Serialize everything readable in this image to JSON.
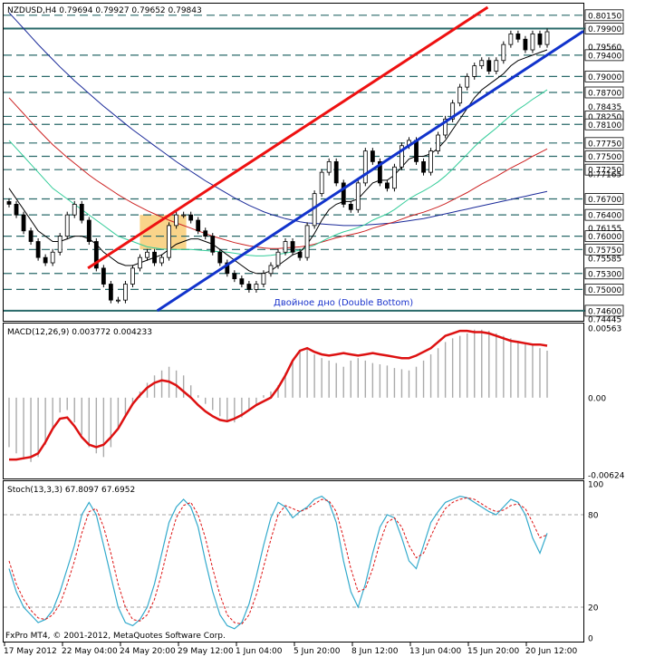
{
  "chart_data": [
    {
      "type": "candlestick",
      "title": "NZDUSD,H4  0.79694 0.79927 0.79652 0.79843",
      "ylim": [
        0.74445,
        0.803
      ],
      "price_labels": [
        {
          "text": "0.80150",
          "value": 0.8015,
          "boxed": true
        },
        {
          "text": "0.79900",
          "value": 0.799,
          "boxed": true
        },
        {
          "text": "0.79560",
          "value": 0.7956,
          "boxed": false
        },
        {
          "text": "0.79400",
          "value": 0.794,
          "boxed": true
        },
        {
          "text": "0.79000",
          "value": 0.79,
          "boxed": true
        },
        {
          "text": "0.78700",
          "value": 0.787,
          "boxed": true
        },
        {
          "text": "0.78435",
          "value": 0.78435,
          "boxed": false
        },
        {
          "text": "0.78250",
          "value": 0.7825,
          "boxed": true
        },
        {
          "text": "0.78100",
          "value": 0.781,
          "boxed": true
        },
        {
          "text": "0.77750",
          "value": 0.7775,
          "boxed": true
        },
        {
          "text": "0.77500",
          "value": 0.775,
          "boxed": true
        },
        {
          "text": "0.77250",
          "value": 0.7725,
          "boxed": true
        },
        {
          "text": "0.77165",
          "value": 0.77165,
          "boxed": false
        },
        {
          "text": "0.76700",
          "value": 0.767,
          "boxed": true
        },
        {
          "text": "0.76400",
          "value": 0.764,
          "boxed": true
        },
        {
          "text": "0.76155",
          "value": 0.76155,
          "boxed": false
        },
        {
          "text": "0.76000",
          "value": 0.76,
          "boxed": true
        },
        {
          "text": "0.75750",
          "value": 0.7575,
          "boxed": true
        },
        {
          "text": "0.75585",
          "value": 0.75585,
          "boxed": false
        },
        {
          "text": "0.75300",
          "value": 0.753,
          "boxed": true
        },
        {
          "text": "0.75000",
          "value": 0.75,
          "boxed": true
        },
        {
          "text": "0.74600",
          "value": 0.746,
          "boxed": true
        },
        {
          "text": "0.74445",
          "value": 0.74445,
          "boxed": false
        }
      ],
      "dashed_levels": [
        0.8015,
        0.794,
        0.79,
        0.787,
        0.7825,
        0.781,
        0.7775,
        0.775,
        0.7725,
        0.767,
        0.764,
        0.76,
        0.7575,
        0.753,
        0.75
      ],
      "solid_levels": [
        0.799,
        0.746
      ],
      "annotation": "Двойное дно (Double Bottom)",
      "close_series": [
        0.766,
        0.764,
        0.761,
        0.759,
        0.756,
        0.755,
        0.757,
        0.76,
        0.764,
        0.766,
        0.763,
        0.759,
        0.754,
        0.751,
        0.748,
        0.748,
        0.751,
        0.754,
        0.756,
        0.757,
        0.755,
        0.756,
        0.762,
        0.764,
        0.764,
        0.763,
        0.761,
        0.76,
        0.757,
        0.755,
        0.753,
        0.752,
        0.751,
        0.75,
        0.751,
        0.753,
        0.7545,
        0.757,
        0.759,
        0.757,
        0.756,
        0.762,
        0.768,
        0.772,
        0.774,
        0.77,
        0.766,
        0.765,
        0.77,
        0.776,
        0.774,
        0.77,
        0.769,
        0.773,
        0.777,
        0.778,
        0.774,
        0.772,
        0.776,
        0.779,
        0.782,
        0.785,
        0.788,
        0.79,
        0.792,
        0.793,
        0.791,
        0.793,
        0.796,
        0.798,
        0.797,
        0.795,
        0.798,
        0.796,
        0.7984
      ],
      "ma_fast": [
        0.769,
        0.767,
        0.765,
        0.763,
        0.761,
        0.76,
        0.759,
        0.759,
        0.7595,
        0.76,
        0.76,
        0.7595,
        0.7585,
        0.757,
        0.756,
        0.755,
        0.7545,
        0.7545,
        0.755,
        0.7555,
        0.756,
        0.7565,
        0.7575,
        0.7585,
        0.759,
        0.7595,
        0.7595,
        0.759,
        0.7585,
        0.7575,
        0.7565,
        0.7555,
        0.7545,
        0.7535,
        0.753,
        0.753,
        0.7535,
        0.7545,
        0.7555,
        0.7565,
        0.757,
        0.7585,
        0.7605,
        0.763,
        0.765,
        0.766,
        0.7665,
        0.7665,
        0.767,
        0.7685,
        0.77,
        0.7705,
        0.7705,
        0.7715,
        0.773,
        0.7745,
        0.775,
        0.775,
        0.7755,
        0.7765,
        0.778,
        0.78,
        0.782,
        0.784,
        0.786,
        0.7875,
        0.7885,
        0.7895,
        0.7905,
        0.792,
        0.793,
        0.7935,
        0.794,
        0.7945,
        0.795
      ],
      "ma_green": [
        0.778,
        0.7765,
        0.775,
        0.7735,
        0.772,
        0.7705,
        0.769,
        0.768,
        0.767,
        0.766,
        0.765,
        0.764,
        0.763,
        0.762,
        0.761,
        0.76,
        0.7595,
        0.759,
        0.7585,
        0.758,
        0.7578,
        0.7576,
        0.7575,
        0.7575,
        0.7575,
        0.7575,
        0.7574,
        0.7573,
        0.7572,
        0.7571,
        0.757,
        0.7568,
        0.7566,
        0.7564,
        0.7563,
        0.7563,
        0.7564,
        0.7566,
        0.7568,
        0.7571,
        0.7574,
        0.7578,
        0.7583,
        0.759,
        0.7597,
        0.7603,
        0.7608,
        0.7612,
        0.7616,
        0.7622,
        0.763,
        0.7636,
        0.7642,
        0.765,
        0.766,
        0.767,
        0.7678,
        0.7685,
        0.7693,
        0.7702,
        0.7713,
        0.7726,
        0.774,
        0.7754,
        0.7768,
        0.7781,
        0.7792,
        0.7803,
        0.7815,
        0.7827,
        0.7838,
        0.7847,
        0.7857,
        0.7866,
        0.7875
      ],
      "ma_red": [
        0.786,
        0.7845,
        0.783,
        0.7815,
        0.78,
        0.7786,
        0.7772,
        0.776,
        0.7748,
        0.7737,
        0.7726,
        0.7715,
        0.7705,
        0.7696,
        0.7687,
        0.7678,
        0.767,
        0.7662,
        0.7655,
        0.7648,
        0.7642,
        0.7636,
        0.763,
        0.7625,
        0.762,
        0.7615,
        0.761,
        0.7605,
        0.76,
        0.7596,
        0.7592,
        0.7588,
        0.7585,
        0.7582,
        0.758,
        0.7578,
        0.7577,
        0.7577,
        0.7578,
        0.7579,
        0.758,
        0.7582,
        0.7585,
        0.7589,
        0.7593,
        0.7597,
        0.76,
        0.7603,
        0.7606,
        0.761,
        0.7615,
        0.7619,
        0.7623,
        0.7627,
        0.7632,
        0.7637,
        0.7641,
        0.7645,
        0.765,
        0.7655,
        0.7661,
        0.7668,
        0.7675,
        0.7682,
        0.769,
        0.7698,
        0.7705,
        0.7712,
        0.772,
        0.7728,
        0.7735,
        0.7742,
        0.775,
        0.7757,
        0.7764
      ],
      "ma_navy": [
        0.802,
        0.8005,
        0.799,
        0.7975,
        0.796,
        0.7946,
        0.7932,
        0.7918,
        0.7905,
        0.7892,
        0.788,
        0.7868,
        0.7856,
        0.7844,
        0.7833,
        0.7822,
        0.7811,
        0.78,
        0.779,
        0.778,
        0.777,
        0.776,
        0.775,
        0.774,
        0.7731,
        0.7722,
        0.7713,
        0.7704,
        0.7696,
        0.7688,
        0.768,
        0.7672,
        0.7665,
        0.7658,
        0.7652,
        0.7646,
        0.7641,
        0.7637,
        0.7633,
        0.763,
        0.7627,
        0.7625,
        0.7624,
        0.7623,
        0.7622,
        0.7621,
        0.762,
        0.762,
        0.762,
        0.7621,
        0.7622,
        0.7623,
        0.7624,
        0.7625,
        0.7627,
        0.7629,
        0.7631,
        0.7633,
        0.7636,
        0.7639,
        0.7642,
        0.7645,
        0.7648,
        0.7651,
        0.7654,
        0.7657,
        0.766,
        0.7663,
        0.7666,
        0.7669,
        0.7672,
        0.7675,
        0.7678,
        0.7681,
        0.7684
      ],
      "trend_lines": [
        {
          "name": "upper-channel",
          "color": "#ee1111",
          "points": [
            [
              0.1455,
              0.754
            ],
            [
              0.835,
              0.803
            ]
          ]
        },
        {
          "name": "lower-channel",
          "color": "#1133cc",
          "points": [
            [
              0.265,
              0.746
            ],
            [
              1.0,
              0.7985
            ]
          ]
        }
      ],
      "highlight_box": {
        "from": 0.235,
        "to": 0.315,
        "low": 0.7575,
        "high": 0.764,
        "color": "#f7c96d"
      }
    },
    {
      "type": "bar-line",
      "title": "MACD(12,26,9) 0.003772 0.004233",
      "ylim": [
        -0.00624,
        0.00563
      ],
      "axis_labels": [
        {
          "text": "0.00563",
          "value": 0.00563
        },
        {
          "text": "0.00",
          "value": 0.0
        },
        {
          "text": "-0.00624",
          "value": -0.00624
        }
      ],
      "histogram": [
        -0.004,
        -0.0045,
        -0.005,
        -0.0052,
        -0.0048,
        -0.0038,
        -0.0025,
        -0.0012,
        -0.001,
        -0.002,
        -0.003,
        -0.004,
        -0.0045,
        -0.0048,
        -0.004,
        -0.0025,
        -0.0015,
        -0.0005,
        0.0005,
        0.0012,
        0.0018,
        0.0022,
        0.0025,
        0.0022,
        0.0018,
        0.001,
        0.0002,
        -0.0005,
        -0.001,
        -0.0015,
        -0.0018,
        -0.002,
        -0.0016,
        -0.001,
        -0.0005,
        0.0002,
        0.0005,
        0.001,
        0.002,
        0.003,
        0.0038,
        0.004,
        0.0035,
        0.0032,
        0.003,
        0.0028,
        0.0025,
        0.003,
        0.0032,
        0.003,
        0.0028,
        0.0027,
        0.0026,
        0.0024,
        0.0023,
        0.0022,
        0.0025,
        0.003,
        0.0035,
        0.004,
        0.0045,
        0.0048,
        0.005,
        0.0052,
        0.0055,
        0.0055,
        0.0054,
        0.0052,
        0.005,
        0.0048,
        0.0046,
        0.0044,
        0.0042,
        0.004,
        0.0038
      ],
      "signal": [
        -0.005,
        -0.005,
        -0.0049,
        -0.0048,
        -0.0045,
        -0.0036,
        -0.0025,
        -0.0017,
        -0.0016,
        -0.0023,
        -0.0032,
        -0.0038,
        -0.004,
        -0.0038,
        -0.0032,
        -0.0025,
        -0.0015,
        -0.0005,
        0.0002,
        0.0008,
        0.0012,
        0.0014,
        0.0013,
        0.001,
        0.0005,
        0.0,
        -0.0006,
        -0.0011,
        -0.0015,
        -0.0018,
        -0.0019,
        -0.0017,
        -0.0014,
        -0.001,
        -0.0006,
        -0.0003,
        0.0,
        0.0008,
        0.0018,
        0.003,
        0.0038,
        0.004,
        0.0037,
        0.0035,
        0.0034,
        0.0035,
        0.0036,
        0.0035,
        0.0034,
        0.0035,
        0.0036,
        0.0035,
        0.0034,
        0.0033,
        0.0032,
        0.0032,
        0.0034,
        0.0037,
        0.004,
        0.0045,
        0.005,
        0.0052,
        0.0054,
        0.0054,
        0.0053,
        0.0053,
        0.0052,
        0.005,
        0.0048,
        0.0046,
        0.0045,
        0.0044,
        0.0043,
        0.0043,
        0.0042
      ]
    },
    {
      "type": "line",
      "title": "Stoch(13,3,3) 67.8097 67.6952",
      "ylim": [
        0,
        100
      ],
      "axis_labels": [
        {
          "text": "100",
          "value": 100
        },
        {
          "text": "80",
          "value": 80
        },
        {
          "text": "20",
          "value": 20
        },
        {
          "text": "0",
          "value": 0
        }
      ],
      "dashed_levels": [
        80,
        20
      ],
      "main": [
        45,
        30,
        20,
        15,
        10,
        12,
        18,
        30,
        45,
        60,
        80,
        88,
        80,
        60,
        40,
        20,
        10,
        8,
        12,
        20,
        35,
        55,
        75,
        85,
        90,
        85,
        72,
        50,
        30,
        15,
        8,
        6,
        10,
        22,
        40,
        60,
        78,
        88,
        85,
        78,
        82,
        85,
        90,
        92,
        88,
        75,
        50,
        30,
        20,
        35,
        55,
        72,
        80,
        78,
        65,
        50,
        45,
        60,
        75,
        82,
        88,
        90,
        92,
        91,
        88,
        85,
        82,
        80,
        85,
        90,
        88,
        80,
        65,
        55,
        68
      ],
      "signal": [
        50,
        35,
        25,
        18,
        13,
        12,
        15,
        22,
        35,
        50,
        68,
        82,
        84,
        72,
        55,
        35,
        20,
        12,
        11,
        15,
        25,
        42,
        62,
        78,
        86,
        88,
        80,
        65,
        45,
        28,
        15,
        10,
        9,
        15,
        28,
        46,
        64,
        80,
        86,
        84,
        82,
        84,
        87,
        90,
        89,
        82,
        65,
        45,
        30,
        32,
        45,
        62,
        75,
        78,
        72,
        60,
        52,
        55,
        66,
        76,
        84,
        88,
        90,
        91,
        90,
        87,
        84,
        82,
        83,
        86,
        87,
        84,
        75,
        65,
        67
      ]
    }
  ],
  "time_labels": [
    "17 May 2012",
    "22 May 04:00",
    "24 May 20:00",
    "29 May 12:00",
    "1 Jun 04:00",
    "5 Jun 20:00",
    "8 Jun 12:00",
    "13 Jun 04:00",
    "15 Jun 20:00",
    "20 Jun 12:00"
  ],
  "footer": "FxPro MT4, © 2001-2012, MetaQuotes Software Corp."
}
